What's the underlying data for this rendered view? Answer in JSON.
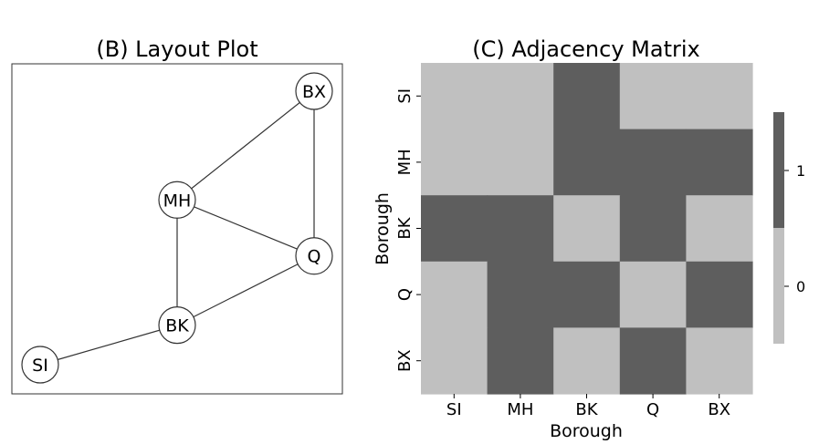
{
  "chart_data": [
    {
      "type": "network",
      "title": "(B) Layout Plot",
      "nodes": [
        {
          "id": "SI",
          "x": 0.0,
          "y": 0.0
        },
        {
          "id": "BK",
          "x": 0.5,
          "y": 0.12
        },
        {
          "id": "MH",
          "x": 0.5,
          "y": 0.5
        },
        {
          "id": "Q",
          "x": 1.0,
          "y": 0.33
        },
        {
          "id": "BX",
          "x": 1.0,
          "y": 0.83
        }
      ],
      "edges": [
        [
          "SI",
          "BK"
        ],
        [
          "BK",
          "MH"
        ],
        [
          "BK",
          "Q"
        ],
        [
          "MH",
          "Q"
        ],
        [
          "MH",
          "BX"
        ],
        [
          "Q",
          "BX"
        ]
      ]
    },
    {
      "type": "heatmap",
      "title": "(C) Adjacency Matrix",
      "xlabel": "Borough",
      "ylabel": "Borough",
      "categories": [
        "SI",
        "MH",
        "BK",
        "Q",
        "BX"
      ],
      "matrix": [
        [
          0,
          0,
          1,
          0,
          0
        ],
        [
          0,
          0,
          1,
          1,
          1
        ],
        [
          1,
          1,
          0,
          1,
          0
        ],
        [
          0,
          1,
          1,
          0,
          1
        ],
        [
          0,
          1,
          0,
          1,
          0
        ]
      ],
      "colorbar": {
        "ticks": [
          "0",
          "1"
        ]
      },
      "colors": {
        "0": "#c0c0c0",
        "1": "#5e5e5e"
      }
    }
  ]
}
